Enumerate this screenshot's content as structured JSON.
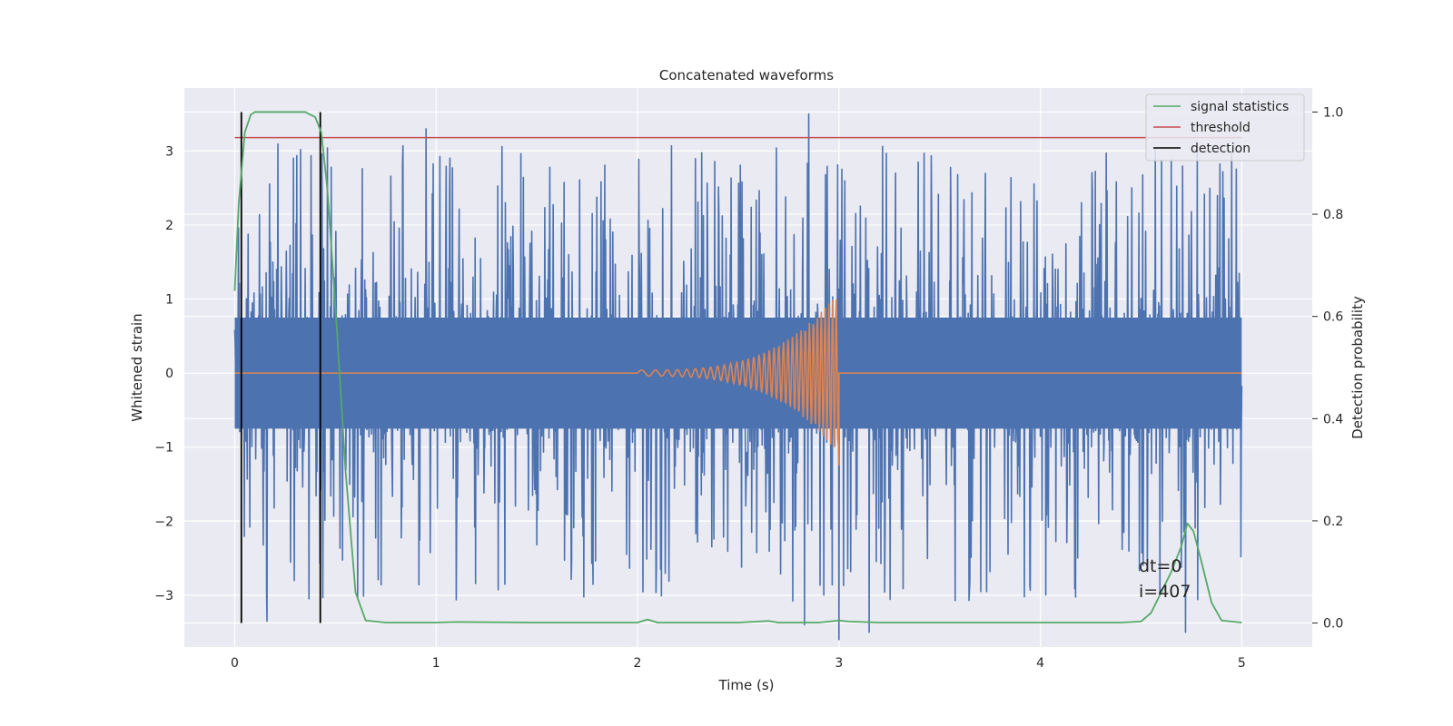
{
  "chart_data": {
    "type": "line",
    "title": "Concatenated waveforms",
    "xlabel": "Time (s)",
    "ylabel": "Whitened strain",
    "y2label": "Detection probability",
    "xlim": [
      -0.25,
      5.35
    ],
    "ylim": [
      -3.7,
      3.85
    ],
    "y2lim": [
      -0.047,
      1.047
    ],
    "xticks": [
      0,
      1,
      2,
      3,
      4,
      5
    ],
    "yticks": [
      -3,
      -2,
      -1,
      0,
      1,
      2,
      3
    ],
    "y2ticks": [
      0.0,
      0.2,
      0.4,
      0.6,
      0.8,
      1.0
    ],
    "xtick_labels": [
      "0",
      "1",
      "2",
      "3",
      "4",
      "5"
    ],
    "ytick_labels": [
      "−3",
      "−2",
      "−1",
      "0",
      "1",
      "2",
      "3"
    ],
    "y2tick_labels": [
      "0.0",
      "0.2",
      "0.4",
      "0.6",
      "0.8",
      "1.0"
    ],
    "grid": true,
    "legend_position": "top-right",
    "legend": [
      "signal statistics",
      "threshold",
      "detection"
    ],
    "colors": {
      "noise": "#4c72b0",
      "injected_signal": "#dd8452",
      "signal_statistics": "#55a868",
      "threshold": "#c44e52",
      "detection": "#000000",
      "background": "#eaeaf2",
      "grid": "#ffffff"
    },
    "noise": {
      "x_range": [
        0,
        5
      ],
      "core_amplitude": 0.75,
      "peak_range": [
        -3.5,
        3.5
      ],
      "notable_spikes": [
        [
          0.95,
          3.3
        ],
        [
          2.85,
          3.5
        ],
        [
          2.83,
          -3.4
        ],
        [
          3.0,
          -3.6
        ],
        [
          3.15,
          -3.5
        ],
        [
          0.16,
          -3.35
        ],
        [
          4.95,
          3.0
        ],
        [
          4.72,
          -3.5
        ]
      ]
    },
    "injected_signal": {
      "start": 2.0,
      "end": 3.0,
      "peak_amplitude": 1.1,
      "min_amplitude": -1.25
    },
    "threshold": {
      "value": 0.95,
      "x_range": [
        0,
        5
      ]
    },
    "detections": [
      0.033,
      0.425
    ],
    "signal_statistics": {
      "x": [
        0.0,
        0.02,
        0.05,
        0.08,
        0.1,
        0.15,
        0.25,
        0.35,
        0.4,
        0.43,
        0.46,
        0.5,
        0.55,
        0.6,
        0.65,
        0.75,
        1.0,
        1.1,
        1.5,
        2.0,
        2.05,
        2.1,
        2.5,
        2.65,
        2.7,
        2.9,
        3.0,
        3.05,
        3.2,
        4.0,
        4.4,
        4.5,
        4.55,
        4.6,
        4.65,
        4.7,
        4.73,
        4.76,
        4.8,
        4.85,
        4.9,
        5.0
      ],
      "y": [
        0.65,
        0.82,
        0.96,
        0.995,
        1.0,
        1.0,
        1.0,
        1.0,
        0.99,
        0.96,
        0.85,
        0.62,
        0.3,
        0.06,
        0.005,
        0.001,
        0.001,
        0.002,
        0.001,
        0.001,
        0.007,
        0.001,
        0.001,
        0.004,
        0.001,
        0.001,
        0.005,
        0.003,
        0.001,
        0.001,
        0.001,
        0.003,
        0.02,
        0.06,
        0.1,
        0.15,
        0.195,
        0.18,
        0.12,
        0.04,
        0.005,
        0.001
      ]
    },
    "annotations": [
      "dt=0",
      "i=407"
    ]
  }
}
